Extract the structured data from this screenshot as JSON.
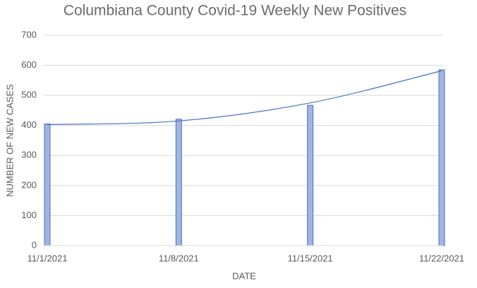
{
  "chart_data": {
    "type": "bar",
    "title": "Columbiana County Covid-19 Weekly New Positives",
    "x_label": "DATE",
    "y_label": "NUMBER OF NEW CASES",
    "categories": [
      "11/1/2021",
      "11/8/2021",
      "11/15/2021",
      "11/22/2021"
    ],
    "values": [
      405,
      421,
      467,
      585
    ],
    "color": "#a4b4e0",
    "edge_color": "#4472c4",
    "trendline": {
      "values": [
        403,
        415,
        475,
        582
      ],
      "color": "#4472c4"
    },
    "ylim": [
      0,
      700
    ],
    "yticks": [
      0,
      100,
      200,
      300,
      400,
      500,
      600,
      700
    ],
    "grid": true
  }
}
